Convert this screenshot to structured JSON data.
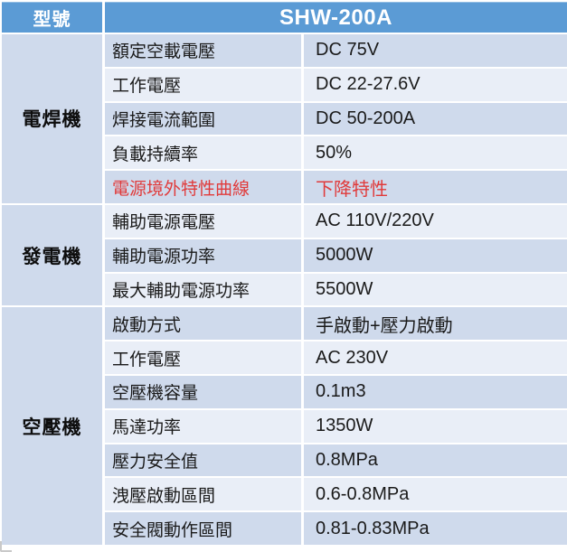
{
  "header": {
    "col1": "型號",
    "model": "SHW-200A"
  },
  "sections": [
    {
      "category": "電焊機",
      "rows": [
        {
          "label": "額定空載電壓",
          "value": "DC 75V"
        },
        {
          "label": "工作電壓",
          "value": "DC 22-27.6V"
        },
        {
          "label": "焊接電流範圍",
          "value": "DC 50-200A"
        },
        {
          "label": "負載持續率",
          "value": "50%"
        },
        {
          "label": "電源境外特性曲線",
          "value": "下降特性",
          "highlight": true
        }
      ]
    },
    {
      "category": "發電機",
      "rows": [
        {
          "label": "輔助電源電壓",
          "value": "AC 110V/220V"
        },
        {
          "label": "輔助電源功率",
          "value": "5000W"
        },
        {
          "label": "最大輔助電源功率",
          "value": "5500W"
        }
      ]
    },
    {
      "category": "空壓機",
      "rows": [
        {
          "label": "啟動方式",
          "value": "手啟動+壓力啟動"
        },
        {
          "label": "工作電壓",
          "value": "AC 230V"
        },
        {
          "label": "空壓機容量",
          "value": "0.1m3"
        },
        {
          "label": "馬達功率",
          "value": "1350W"
        },
        {
          "label": "壓力安全值",
          "value": "0.8MPa"
        },
        {
          "label": "洩壓啟動區間",
          "value": "0.6-0.8MPa"
        },
        {
          "label": "安全閥動作區間",
          "value": "0.81-0.83MPa"
        }
      ]
    }
  ],
  "colors": {
    "header_bg": "#5b9bd5",
    "band_dark": "#cfdaec",
    "band_light": "#e9eef7",
    "text": "#1a1a1a",
    "highlight_text": "#e03b3b"
  }
}
